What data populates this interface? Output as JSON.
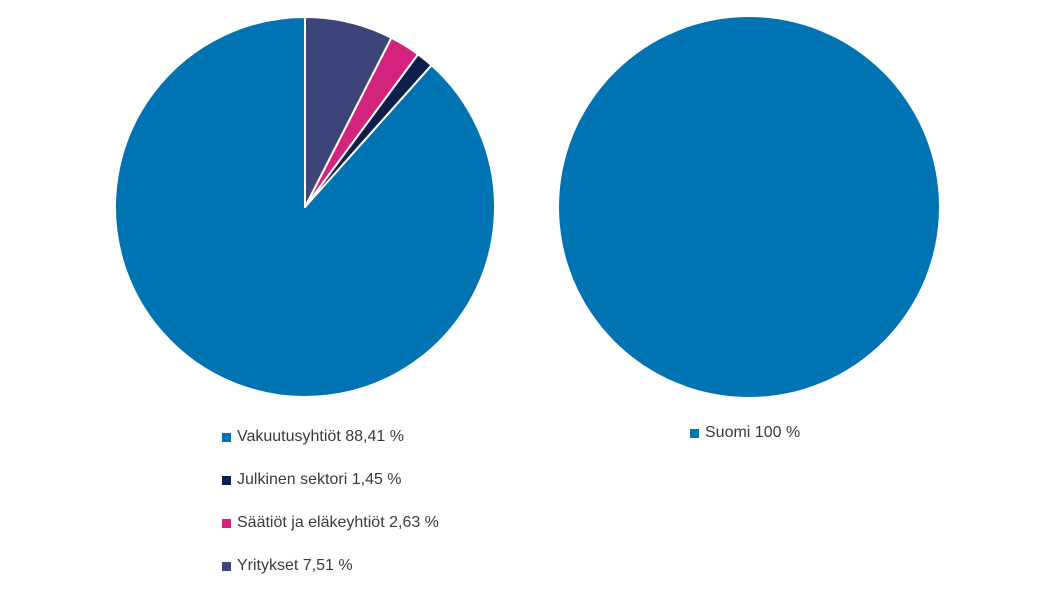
{
  "chart_data": [
    {
      "type": "pie",
      "start_angle": "top",
      "direction": "counter-clockwise",
      "legend_position": "bottom",
      "slices": [
        {
          "label": "Vakuutusyhtiöt 88,41 %",
          "value": 88.41,
          "color": "#0074b3"
        },
        {
          "label": "Julkinen sektori 1,45 %",
          "value": 1.45,
          "color": "#0d1f4a"
        },
        {
          "label": "Säätiöt ja eläkeyhtiöt 2,63 %",
          "value": 2.63,
          "color": "#d4237f"
        },
        {
          "label": "Yritykset 7,51 %",
          "value": 7.51,
          "color": "#3c4479"
        }
      ]
    },
    {
      "type": "pie",
      "start_angle": "top",
      "direction": "counter-clockwise",
      "legend_position": "bottom",
      "slices": [
        {
          "label": "Suomi 100 %",
          "value": 100,
          "color": "#0074b3"
        }
      ]
    }
  ]
}
